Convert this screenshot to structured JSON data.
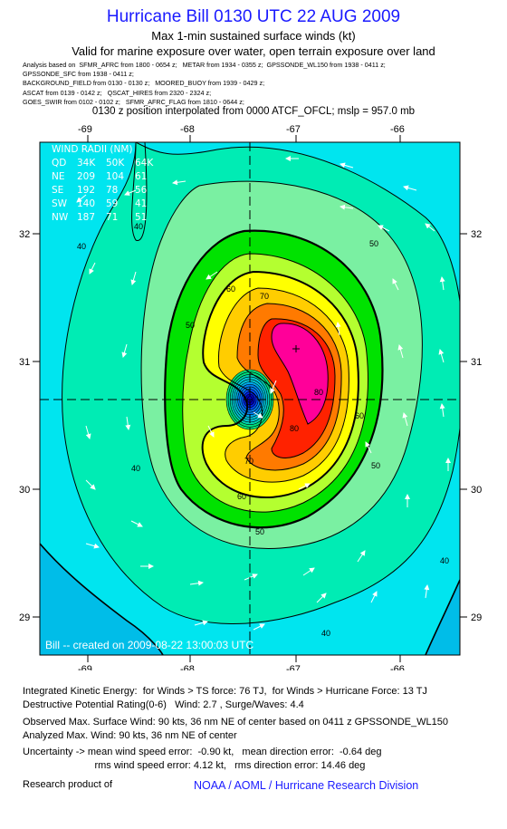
{
  "header": {
    "title": "Hurricane Bill 0130 UTC 22 AUG 2009",
    "subtitle": "Max 1-min sustained surface winds (kt)",
    "validity": "Valid for marine exposure over water, open terrain exposure over land",
    "sources": [
      "Analysis based on  SFMR_AFRC from 1800 - 0654 z;   METAR from 1934 - 0355 z;  GPSSONDE_WL150 from 1938 - 0411 z;",
      "GPSSONDE_SFC from 1938 - 0411 z;",
      "BACKGROUND_FIELD from 0130 - 0130 z;   MOORED_BUOY from 1939 - 0429 z;",
      "ASCAT from 0139 - 0142 z;   QSCAT_HIRES from 2320 - 2324 z;",
      "GOES_SWIR from 0102 - 0102 z;   SFMR_AFRC_FLAG from 1810 - 0644 z;"
    ],
    "position_note": "0130 z position interpolated from 0000 ATCF_OFCL; mslp = 957.0 mb"
  },
  "map": {
    "lon_ticks": [
      "-69",
      "-68",
      "-67",
      "-66"
    ],
    "lat_ticks": [
      "32",
      "31",
      "30",
      "29"
    ],
    "lon_range": [
      -69.35,
      -65.55
    ],
    "lat_range": [
      28.65,
      32.85
    ],
    "center": {
      "lon": -67.42,
      "lat": 30.7
    },
    "contour_labels": [
      "40",
      "40",
      "40",
      "40",
      "40",
      "50",
      "50",
      "50",
      "50",
      "60",
      "60",
      "60",
      "70",
      "70",
      "80",
      "80"
    ],
    "colors": {
      "below_34": "#00e5ef",
      "ts_band": "#00ecb4",
      "band_40_50": "#7af0a2",
      "band_50_60": "#00e200",
      "band_60_64": "#b4ff30",
      "band_64_70": "#ffff00",
      "band_70_75": "#ffcd00",
      "band_75_80": "#ff7a00",
      "band_80_85": "#ff2200",
      "band_85_90": "#ff0099",
      "edge_shallow": "#00bde8"
    },
    "wind_radii": {
      "title": "WIND RADII (NM)",
      "rows": [
        [
          "QD",
          "34K",
          "50K",
          "64K"
        ],
        [
          "NE",
          "209",
          "104",
          "61"
        ],
        [
          "SE",
          "192",
          "78",
          "56"
        ],
        [
          "SW",
          "140",
          "59",
          "41"
        ],
        [
          "NW",
          "187",
          "71",
          "51"
        ]
      ]
    },
    "credit": "Bill -- created on 2009-08-22 13:00:03 UTC"
  },
  "footer": {
    "ike": "Integrated Kinetic Energy:  for Winds > TS force: 76 TJ,  for Winds > Hurricane Force: 13 TJ",
    "dpr": "Destructive Potential Rating(0-6)   Wind: 2.7 , Surge/Waves: 4.4",
    "obs_max": "Observed Max. Surface Wind: 90 kts, 36 nm NE of center based on 0411 z GPSSONDE_WL150",
    "ana_max": "Analyzed Max. Wind: 90 kts, 36 nm NE of center",
    "uncert1": "Uncertainty -> mean wind speed error:  -0.90 kt,   mean direction error:  -0.64 deg",
    "uncert2": "                          rms wind speed error: 4.12 kt,   rms direction error: 14.46 deg",
    "research": "Research product of",
    "org": "NOAA / AOML / Hurricane Research Division"
  }
}
